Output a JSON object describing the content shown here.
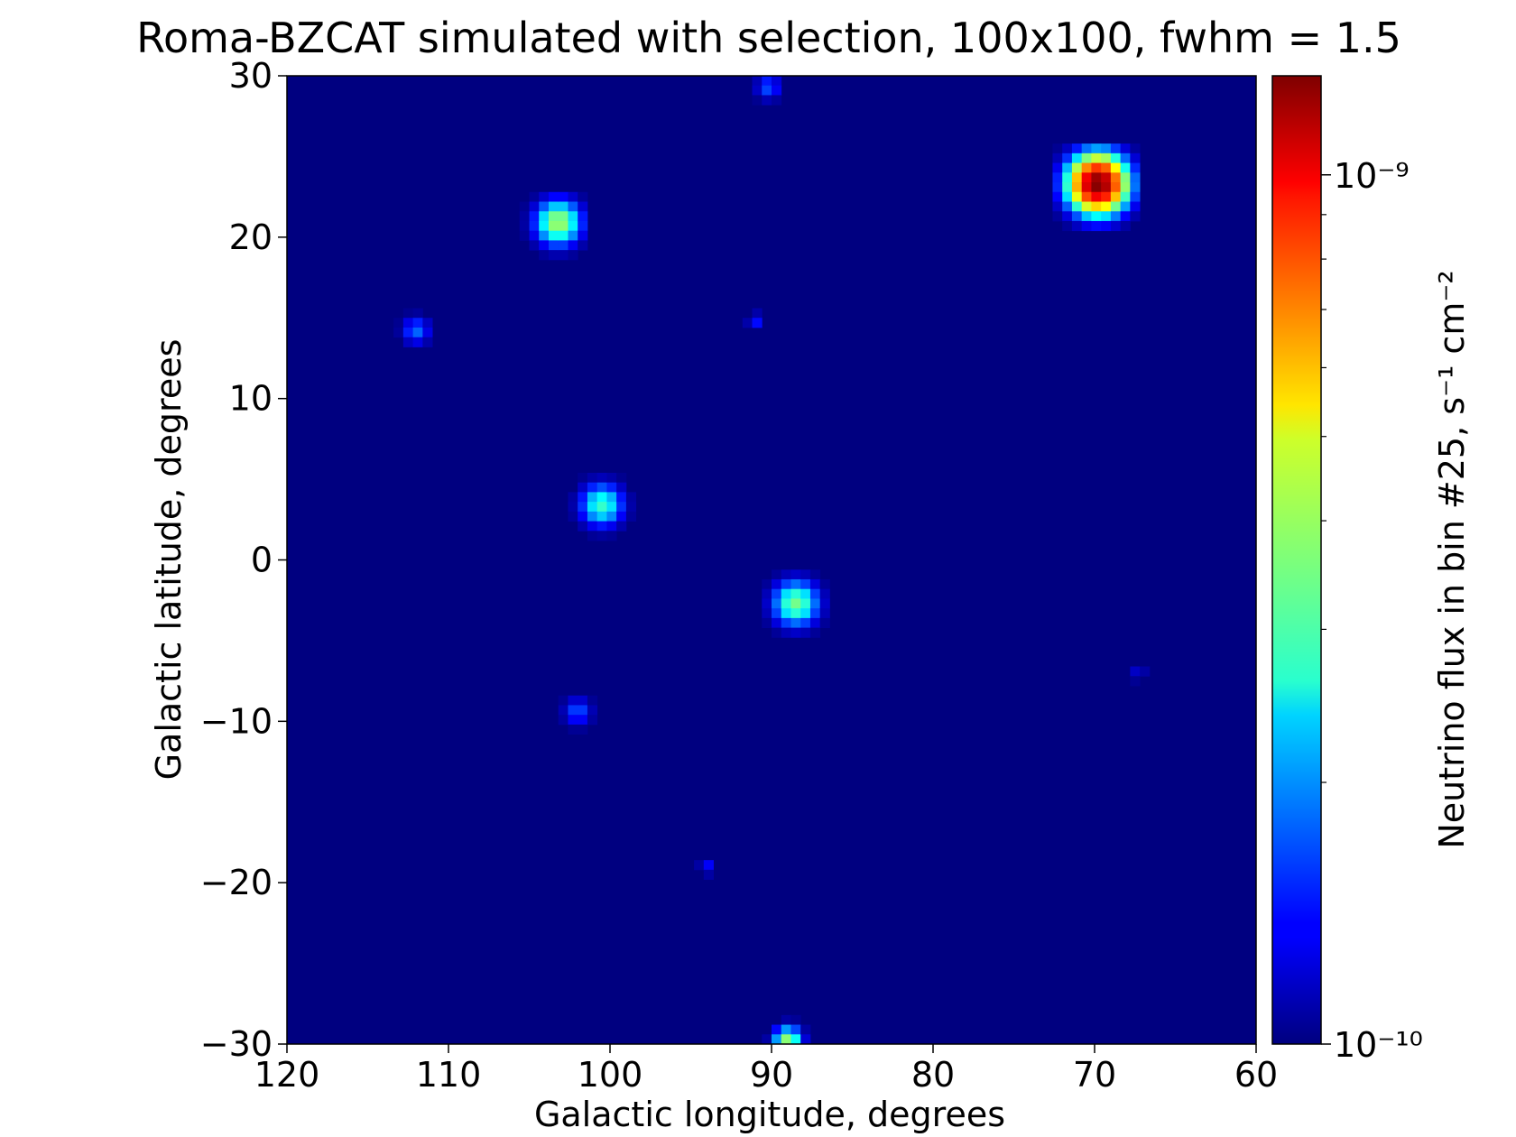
{
  "chart_data": {
    "type": "heatmap",
    "title": "Roma-BZCAT simulated with selection, 100x100, fwhm = 1.5",
    "xlabel": "Galactic longitude, degrees",
    "ylabel": "Galactic latitude, degrees",
    "xlim": [
      120,
      60
    ],
    "ylim": [
      -30,
      30
    ],
    "grid_size": [
      100,
      100
    ],
    "x_ticks": [
      {
        "value": 120,
        "label": "120"
      },
      {
        "value": 110,
        "label": "110"
      },
      {
        "value": 100,
        "label": "100"
      },
      {
        "value": 90,
        "label": "90"
      },
      {
        "value": 80,
        "label": "80"
      },
      {
        "value": 70,
        "label": "70"
      },
      {
        "value": 60,
        "label": "60"
      }
    ],
    "y_ticks": [
      {
        "value": 30,
        "label": "30"
      },
      {
        "value": 20,
        "label": "20"
      },
      {
        "value": 10,
        "label": "10"
      },
      {
        "value": 0,
        "label": "0"
      },
      {
        "value": -10,
        "label": "−10"
      },
      {
        "value": -20,
        "label": "−20"
      },
      {
        "value": -30,
        "label": "−30"
      }
    ],
    "colorbar": {
      "label": "Neutrino flux in bin #25, s⁻¹ cm⁻²",
      "scale": "log",
      "min": 1e-10,
      "max": 1.3e-09,
      "colormap": "jet",
      "ticks": [
        {
          "value": 1e-09,
          "label": "10⁻⁹"
        },
        {
          "value": 1e-10,
          "label": "10⁻¹⁰"
        }
      ]
    },
    "background_value": 1e-10,
    "sources": [
      {
        "l": 69.8,
        "b": 23.3,
        "peak": 1.3e-09,
        "spread": 1.0
      },
      {
        "l": 103.2,
        "b": 20.9,
        "peak": 4e-10,
        "spread": 0.8
      },
      {
        "l": 100.5,
        "b": 3.4,
        "peak": 3e-10,
        "spread": 0.75
      },
      {
        "l": 88.5,
        "b": -2.7,
        "peak": 3.5e-10,
        "spread": 0.8
      },
      {
        "l": 89.0,
        "b": -29.8,
        "peak": 3.8e-10,
        "spread": 0.5
      },
      {
        "l": 112.0,
        "b": 14.2,
        "peak": 1.8e-10,
        "spread": 0.5
      },
      {
        "l": 102.0,
        "b": -9.4,
        "peak": 1.7e-10,
        "spread": 0.5
      },
      {
        "l": 90.2,
        "b": 29.3,
        "peak": 1.7e-10,
        "spread": 0.45
      },
      {
        "l": 91.0,
        "b": 14.8,
        "peak": 1.45e-10,
        "spread": 0.3
      },
      {
        "l": 94.0,
        "b": -19.0,
        "peak": 1.4e-10,
        "spread": 0.3
      },
      {
        "l": 67.3,
        "b": -7.0,
        "peak": 1.25e-10,
        "spread": 0.3
      }
    ]
  }
}
